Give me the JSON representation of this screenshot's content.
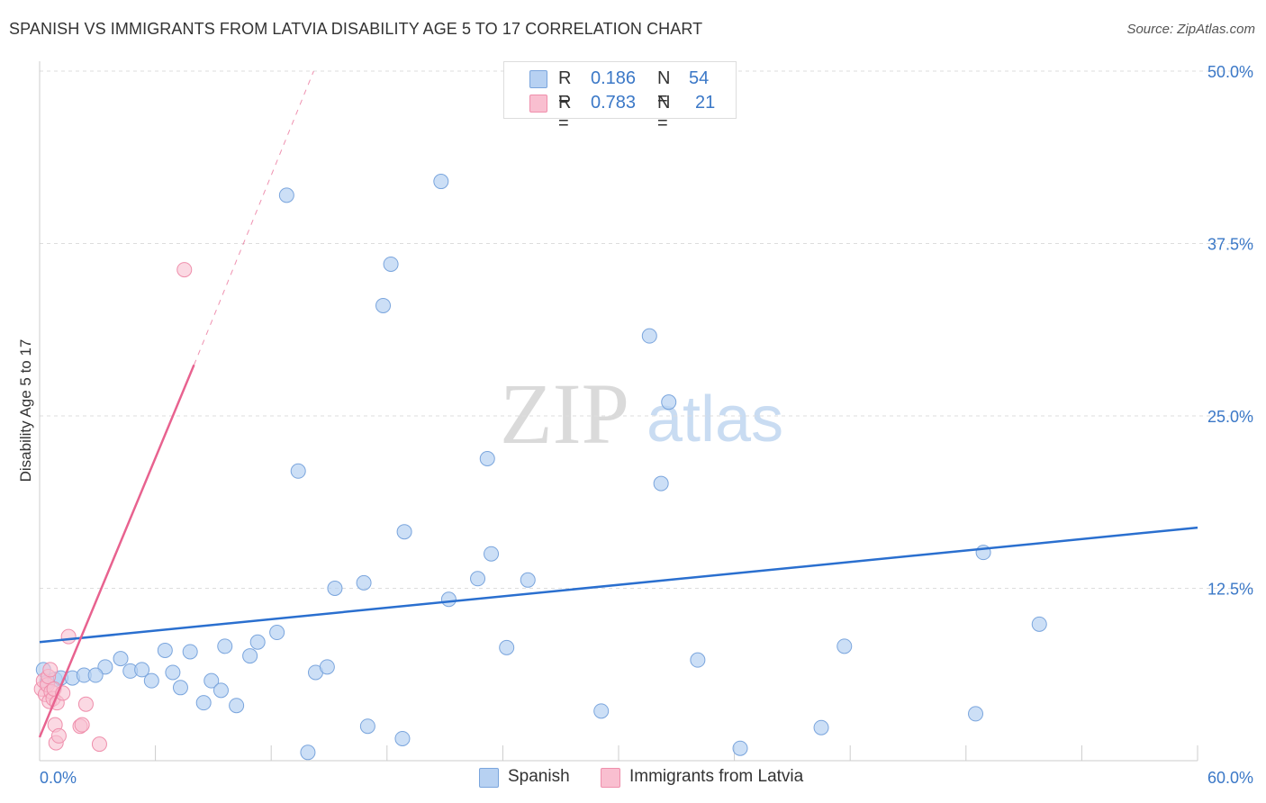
{
  "header": {
    "title": "SPANISH VS IMMIGRANTS FROM LATVIA DISABILITY AGE 5 TO 17 CORRELATION CHART",
    "source": "Source: ZipAtlas.com"
  },
  "watermark": {
    "zip": "ZIP",
    "atlas": "atlas"
  },
  "legend": {
    "rows": [
      {
        "r_label": "R =",
        "r_value": "0.186",
        "n_label": "N =",
        "n_value": "54"
      },
      {
        "r_label": "R =",
        "r_value": "0.783",
        "n_label": "N =",
        "n_value": "21"
      }
    ]
  },
  "colors": {
    "spanish_fill": "#b7d1f2",
    "spanish_stroke": "#7aa5dd",
    "spanish_line": "#2a6fcf",
    "latvia_fill": "#f9bfd0",
    "latvia_stroke": "#ef8fac",
    "latvia_line": "#e8628f",
    "axis_text": "#3b78c7",
    "grid": "#dddddd"
  },
  "chart_data": {
    "type": "scatter",
    "title": "SPANISH VS IMMIGRANTS FROM LATVIA DISABILITY AGE 5 TO 17 CORRELATION CHART",
    "xlabel": "",
    "ylabel": "Disability Age 5 to 17",
    "xlim": [
      0,
      60
    ],
    "ylim": [
      0,
      50
    ],
    "x_tick_labels": [
      "0.0%",
      "60.0%"
    ],
    "y_ticks": [
      12.5,
      25.0,
      37.5,
      50.0
    ],
    "y_tick_labels": [
      "12.5%",
      "25.0%",
      "37.5%",
      "50.0%"
    ],
    "grid": true,
    "series": [
      {
        "name": "Spanish",
        "points": [
          [
            0.2,
            6.6
          ],
          [
            0.4,
            5.7
          ],
          [
            0.8,
            5.9
          ],
          [
            1.1,
            6.0
          ],
          [
            1.7,
            6.0
          ],
          [
            2.3,
            6.2
          ],
          [
            3.4,
            6.8
          ],
          [
            2.9,
            6.2
          ],
          [
            4.2,
            7.4
          ],
          [
            4.7,
            6.5
          ],
          [
            5.3,
            6.6
          ],
          [
            5.8,
            5.8
          ],
          [
            6.5,
            8.0
          ],
          [
            6.9,
            6.4
          ],
          [
            7.3,
            5.3
          ],
          [
            7.8,
            7.9
          ],
          [
            8.5,
            4.2
          ],
          [
            8.9,
            5.8
          ],
          [
            9.4,
            5.1
          ],
          [
            9.6,
            8.3
          ],
          [
            10.2,
            4.0
          ],
          [
            10.9,
            7.6
          ],
          [
            11.3,
            8.6
          ],
          [
            12.3,
            9.3
          ],
          [
            12.8,
            41.0
          ],
          [
            13.4,
            21.0
          ],
          [
            13.9,
            0.6
          ],
          [
            14.3,
            6.4
          ],
          [
            14.9,
            6.8
          ],
          [
            15.3,
            12.5
          ],
          [
            16.8,
            12.9
          ],
          [
            17.0,
            2.5
          ],
          [
            17.8,
            33.0
          ],
          [
            18.2,
            36.0
          ],
          [
            18.8,
            1.6
          ],
          [
            18.9,
            16.6
          ],
          [
            20.8,
            42.0
          ],
          [
            21.2,
            11.7
          ],
          [
            22.7,
            13.2
          ],
          [
            23.2,
            21.9
          ],
          [
            23.4,
            15.0
          ],
          [
            24.2,
            8.2
          ],
          [
            25.3,
            13.1
          ],
          [
            29.1,
            3.6
          ],
          [
            31.6,
            30.8
          ],
          [
            32.2,
            20.1
          ],
          [
            32.6,
            26.0
          ],
          [
            34.1,
            7.3
          ],
          [
            36.3,
            0.9
          ],
          [
            40.5,
            2.4
          ],
          [
            41.7,
            8.3
          ],
          [
            48.5,
            3.4
          ],
          [
            48.9,
            15.1
          ],
          [
            51.8,
            9.9
          ]
        ]
      },
      {
        "name": "Immigrants from Latvia",
        "points": [
          [
            0.1,
            5.2
          ],
          [
            0.2,
            5.8
          ],
          [
            0.3,
            4.8
          ],
          [
            0.4,
            5.5
          ],
          [
            0.45,
            6.1
          ],
          [
            0.5,
            4.3
          ],
          [
            0.55,
            6.6
          ],
          [
            0.6,
            5.0
          ],
          [
            0.7,
            4.5
          ],
          [
            0.75,
            5.2
          ],
          [
            0.8,
            2.6
          ],
          [
            0.85,
            1.3
          ],
          [
            0.9,
            4.2
          ],
          [
            1.0,
            1.8
          ],
          [
            1.2,
            4.9
          ],
          [
            1.5,
            9.0
          ],
          [
            2.1,
            2.5
          ],
          [
            2.2,
            2.6
          ],
          [
            2.4,
            4.1
          ],
          [
            3.1,
            1.2
          ],
          [
            7.5,
            35.6
          ]
        ]
      }
    ],
    "trendlines": [
      {
        "series": "Spanish",
        "x": [
          0,
          60
        ],
        "y": [
          8.6,
          16.9
        ],
        "style": "solid"
      },
      {
        "series": "Immigrants from Latvia",
        "x": [
          0,
          8.0
        ],
        "y": [
          1.7,
          28.7
        ],
        "style": "solid"
      },
      {
        "series": "Immigrants from Latvia",
        "x": [
          8.0,
          14.2
        ],
        "y": [
          28.7,
          50.0
        ],
        "style": "dashed"
      }
    ]
  }
}
